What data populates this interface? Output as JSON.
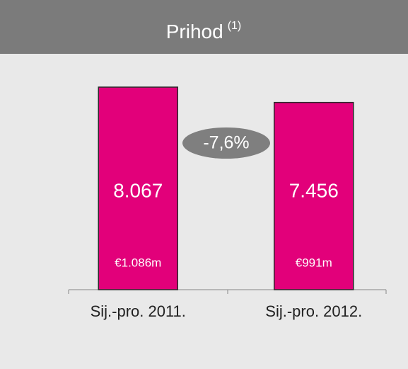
{
  "chart_data": {
    "type": "bar",
    "title": "Prihod",
    "title_note": "(1)",
    "categories": [
      "Sij.-pro. 2011.",
      "Sij.-pro. 2012."
    ],
    "values": [
      8067,
      7456
    ],
    "value_labels": [
      "8.067",
      "7.456"
    ],
    "secondary_labels": [
      "€1.086m",
      "€991m"
    ],
    "annotation": "-7,6%",
    "color": "#e2007a"
  }
}
